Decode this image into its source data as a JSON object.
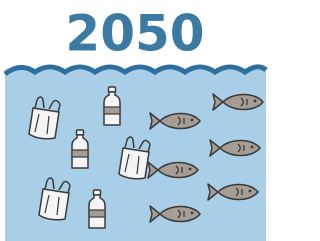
{
  "title": "2050"
}
